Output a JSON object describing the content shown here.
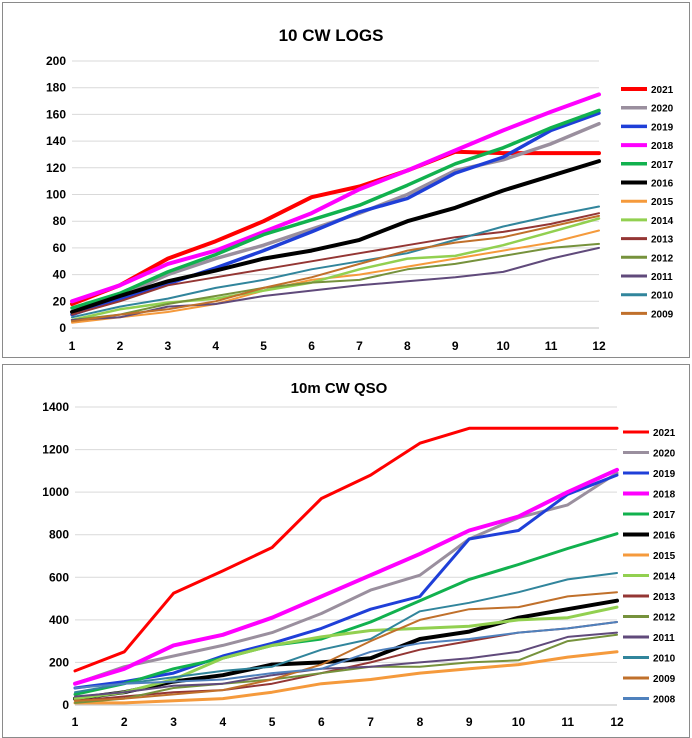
{
  "chart_data": [
    {
      "type": "line",
      "title": "10 CW LOGS",
      "xlabel": "",
      "ylabel": "",
      "x": [
        1,
        2,
        3,
        4,
        5,
        6,
        7,
        8,
        9,
        10,
        11,
        12
      ],
      "ylim": [
        0,
        200
      ],
      "yticks": [
        0,
        20,
        40,
        60,
        80,
        100,
        120,
        140,
        160,
        180,
        200
      ],
      "grid": true,
      "legend": "right",
      "series": [
        {
          "name": "2021",
          "color": "#ff0000",
          "width": 4,
          "values": [
            18,
            32,
            52,
            65,
            80,
            98,
            106,
            118,
            132,
            131,
            131,
            131
          ]
        },
        {
          "name": "2020",
          "color": "#9a8f9e",
          "width": 3.5,
          "values": [
            12,
            24,
            40,
            52,
            62,
            74,
            86,
            100,
            118,
            126,
            138,
            153
          ]
        },
        {
          "name": "2019",
          "color": "#1f3fd8",
          "width": 3.5,
          "values": [
            10,
            22,
            33,
            45,
            58,
            72,
            87,
            97,
            116,
            128,
            148,
            161
          ]
        },
        {
          "name": "2018",
          "color": "#ff00ff",
          "width": 4,
          "values": [
            20,
            32,
            48,
            58,
            72,
            86,
            104,
            118,
            133,
            148,
            162,
            175
          ]
        },
        {
          "name": "2017",
          "color": "#11b14e",
          "width": 3.5,
          "values": [
            15,
            26,
            42,
            55,
            70,
            81,
            92,
            107,
            123,
            135,
            150,
            163
          ]
        },
        {
          "name": "2016",
          "color": "#000000",
          "width": 4,
          "values": [
            12,
            24,
            35,
            43,
            52,
            58,
            66,
            80,
            90,
            103,
            114,
            125
          ]
        },
        {
          "name": "2015",
          "color": "#f59a3c",
          "width": 2,
          "values": [
            4,
            8,
            12,
            18,
            28,
            36,
            40,
            46,
            52,
            58,
            64,
            73
          ]
        },
        {
          "name": "2014",
          "color": "#92d050",
          "width": 2.5,
          "values": [
            6,
            14,
            19,
            22,
            28,
            34,
            44,
            52,
            54,
            62,
            72,
            82
          ]
        },
        {
          "name": "2013",
          "color": "#943634",
          "width": 2,
          "values": [
            10,
            20,
            32,
            38,
            44,
            50,
            56,
            62,
            68,
            72,
            78,
            86
          ]
        },
        {
          "name": "2012",
          "color": "#76923c",
          "width": 2,
          "values": [
            6,
            10,
            18,
            24,
            30,
            34,
            36,
            44,
            48,
            54,
            60,
            63
          ]
        },
        {
          "name": "2011",
          "color": "#604a7b",
          "width": 2,
          "values": [
            6,
            8,
            16,
            18,
            24,
            28,
            32,
            35,
            38,
            42,
            52,
            60
          ]
        },
        {
          "name": "2010",
          "color": "#31859c",
          "width": 2,
          "values": [
            8,
            16,
            22,
            30,
            36,
            44,
            50,
            56,
            66,
            76,
            84,
            91
          ]
        },
        {
          "name": "2009",
          "color": "#c0702b",
          "width": 2,
          "values": [
            5,
            10,
            14,
            20,
            30,
            38,
            48,
            58,
            64,
            68,
            76,
            84
          ]
        }
      ]
    },
    {
      "type": "line",
      "title": "10m CW QSO",
      "xlabel": "",
      "ylabel": "",
      "x": [
        1,
        2,
        3,
        4,
        5,
        6,
        7,
        8,
        9,
        10,
        11,
        12
      ],
      "ylim": [
        0,
        1400
      ],
      "yticks": [
        0,
        200,
        400,
        600,
        800,
        1000,
        1200,
        1400
      ],
      "grid": true,
      "legend": "right",
      "series": [
        {
          "name": "2021",
          "color": "#ff0000",
          "width": 3,
          "values": [
            160,
            250,
            525,
            630,
            740,
            970,
            1080,
            1230,
            1300,
            1300,
            1300,
            1300
          ]
        },
        {
          "name": "2020",
          "color": "#9a8f9e",
          "width": 3,
          "values": [
            100,
            180,
            230,
            280,
            340,
            430,
            540,
            610,
            780,
            880,
            940,
            1090
          ]
        },
        {
          "name": "2019",
          "color": "#1f3fd8",
          "width": 3,
          "values": [
            80,
            110,
            150,
            230,
            290,
            360,
            450,
            510,
            780,
            820,
            990,
            1080
          ]
        },
        {
          "name": "2018",
          "color": "#ff00ff",
          "width": 4,
          "values": [
            100,
            170,
            280,
            330,
            410,
            510,
            610,
            710,
            820,
            885,
            1000,
            1105
          ]
        },
        {
          "name": "2017",
          "color": "#11b14e",
          "width": 3,
          "values": [
            50,
            100,
            170,
            220,
            280,
            310,
            390,
            490,
            590,
            660,
            735,
            805
          ]
        },
        {
          "name": "2016",
          "color": "#000000",
          "width": 4,
          "values": [
            30,
            60,
            110,
            140,
            190,
            200,
            220,
            310,
            345,
            410,
            450,
            490
          ]
        },
        {
          "name": "2015",
          "color": "#f59a3c",
          "width": 3,
          "values": [
            10,
            10,
            20,
            30,
            60,
            100,
            120,
            150,
            170,
            190,
            225,
            250
          ]
        },
        {
          "name": "2014",
          "color": "#92d050",
          "width": 3,
          "values": [
            30,
            60,
            120,
            220,
            280,
            320,
            350,
            360,
            370,
            400,
            410,
            460
          ]
        },
        {
          "name": "2013",
          "color": "#943634",
          "width": 2,
          "values": [
            20,
            40,
            60,
            70,
            100,
            150,
            200,
            260,
            300,
            340,
            360,
            390
          ]
        },
        {
          "name": "2012",
          "color": "#76923c",
          "width": 2,
          "values": [
            10,
            30,
            80,
            100,
            120,
            150,
            180,
            180,
            200,
            210,
            300,
            330
          ]
        },
        {
          "name": "2011",
          "color": "#604a7b",
          "width": 2,
          "values": [
            40,
            60,
            90,
            100,
            140,
            170,
            180,
            200,
            220,
            250,
            320,
            340
          ]
        },
        {
          "name": "2010",
          "color": "#31859c",
          "width": 2,
          "values": [
            60,
            100,
            130,
            160,
            180,
            260,
            310,
            440,
            480,
            530,
            590,
            620
          ]
        },
        {
          "name": "2009",
          "color": "#c0702b",
          "width": 2,
          "values": [
            20,
            30,
            50,
            70,
            120,
            190,
            300,
            400,
            450,
            460,
            510,
            530
          ]
        },
        {
          "name": "2008",
          "color": "#4f81bd",
          "width": 2,
          "values": [
            80,
            100,
            110,
            120,
            150,
            170,
            250,
            290,
            310,
            340,
            360,
            390
          ]
        }
      ]
    }
  ]
}
